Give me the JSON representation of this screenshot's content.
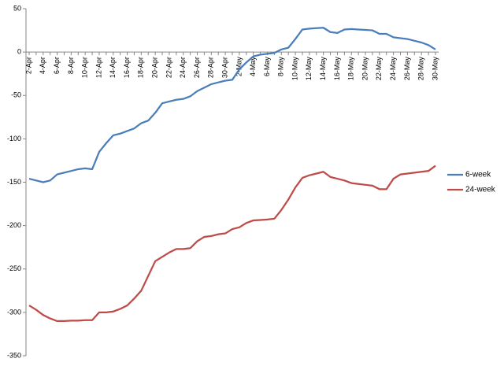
{
  "chart_data": {
    "type": "line",
    "categories": [
      "2-Apr",
      null,
      "4-Apr",
      null,
      "6-Apr",
      null,
      "8-Apr",
      null,
      "10-Apr",
      null,
      "12-Apr",
      null,
      "14-Apr",
      null,
      "16-Apr",
      null,
      "18-Apr",
      null,
      "20-Apr",
      null,
      "22-Apr",
      null,
      "24-Apr",
      null,
      "26-Apr",
      null,
      "28-Apr",
      null,
      "30-Apr",
      null,
      "2-May",
      null,
      "4-May",
      null,
      "6-May",
      null,
      "8-May",
      null,
      "10-May",
      null,
      "12-May",
      null,
      "14-May",
      null,
      "16-May",
      null,
      "18-May",
      null,
      "20-May",
      null,
      "22-May",
      null,
      "24-May",
      null,
      "26-May",
      null,
      "28-May",
      null,
      "30-May"
    ],
    "series": [
      {
        "name": "6-week",
        "color": "#4a7ebb",
        "values": [
          -146,
          -148,
          -150,
          -148,
          -141,
          -139,
          -137,
          -135,
          -134,
          -135,
          -115,
          -105,
          -96,
          -94,
          -91,
          -88,
          -82,
          -79,
          -70,
          -59,
          -57,
          -55,
          -54,
          -51,
          -45,
          -41,
          -37,
          -35,
          -33,
          -32,
          -20,
          -12,
          -5,
          -3,
          -2,
          -1,
          3,
          5,
          15,
          26,
          27,
          27.5,
          28,
          23,
          22,
          26,
          26.5,
          26,
          25.5,
          25,
          21,
          21,
          17,
          16,
          15,
          13,
          11,
          8,
          3
        ]
      },
      {
        "name": "24-week",
        "color": "#be4b48",
        "values": [
          -292,
          -297,
          -303,
          -307,
          -310,
          -310,
          -309.5,
          -309.5,
          -309,
          -309,
          -300,
          -300,
          -299,
          -296,
          -292,
          -284,
          -275,
          -258,
          -241,
          -236,
          -231,
          -227,
          -227,
          -226,
          -218,
          -213,
          -212,
          -210,
          -209,
          -204,
          -202,
          -197,
          -194,
          -193.5,
          -193,
          -192,
          -182,
          -170,
          -156,
          -145,
          -142,
          -140,
          -138,
          -144,
          -146,
          -148,
          -151,
          -152,
          -153,
          -154,
          -158,
          -158,
          -146,
          -141,
          -140,
          -139,
          -138,
          -137,
          -131
        ]
      }
    ],
    "ylim": [
      -350,
      50
    ],
    "yticks": [
      -350,
      -300,
      -250,
      -200,
      -150,
      -100,
      -50,
      0,
      50
    ],
    "legend": "right",
    "grid": false
  }
}
